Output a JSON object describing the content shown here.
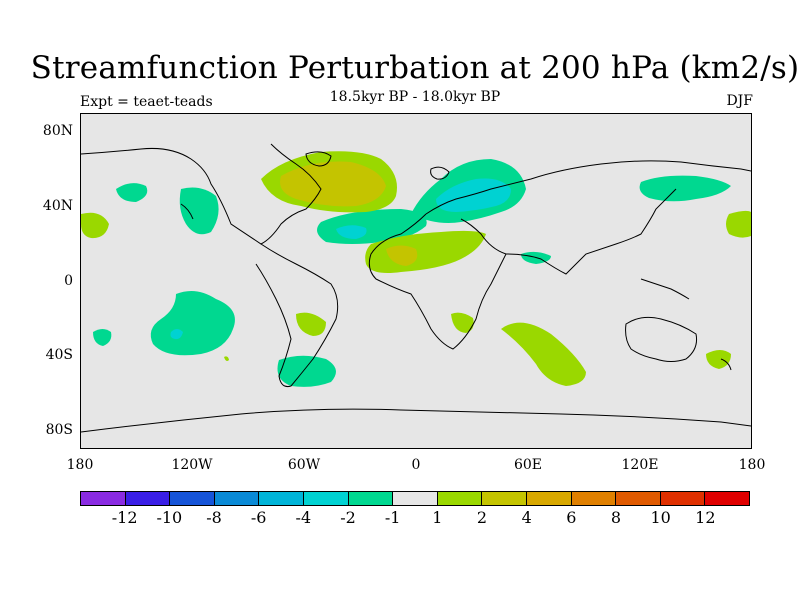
{
  "header": {
    "title": "Streamfunction Perturbation at 200 hPa (km2/s)",
    "subtitle": "18.5kyr BP - 18.0kyr BP",
    "left_label": "Expt = teaet-teads",
    "right_label": "DJF"
  },
  "axes": {
    "y_ticks": [
      "80N",
      "40N",
      "0",
      "40S",
      "80S"
    ],
    "x_ticks": [
      "180",
      "120W",
      "60W",
      "0",
      "60E",
      "120E",
      "180"
    ]
  },
  "colorbar": {
    "colors": [
      "#8a2be2",
      "#3a1ee6",
      "#1654d8",
      "#0a8ad6",
      "#00b4d8",
      "#00d2d2",
      "#00d890",
      "#e6e6e6",
      "#9ad800",
      "#c4c400",
      "#d8a800",
      "#e08000",
      "#e05a00",
      "#e03000",
      "#e00000"
    ],
    "labels": [
      "-12",
      "-10",
      "-8",
      "-6",
      "-4",
      "-2",
      "-1",
      "1",
      "2",
      "4",
      "6",
      "8",
      "10",
      "12"
    ]
  },
  "palette": {
    "background": "#e6e6e6",
    "neg_light": "#00d890",
    "neg_medium": "#00d2d2",
    "pos_light": "#9ad800",
    "pos_medium": "#c4c400"
  }
}
